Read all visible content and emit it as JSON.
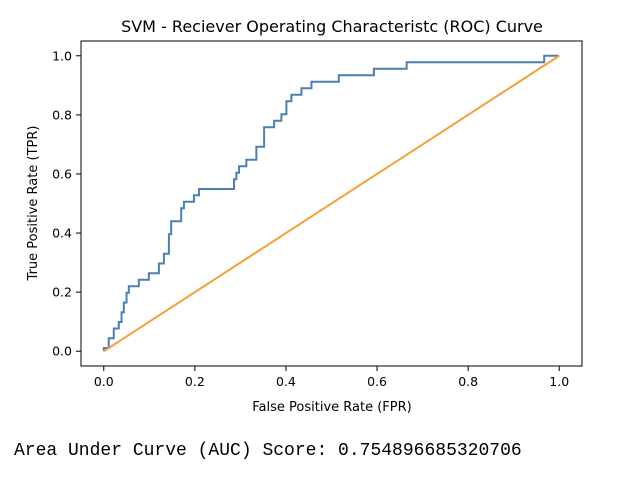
{
  "chart_data": {
    "type": "line",
    "title": "SVM - Reciever Operating Characteristc (ROC) Curve",
    "xlabel": "False Positive Rate (FPR)",
    "ylabel": "True Positive Rate (TPR)",
    "xlim": [
      -0.05,
      1.05
    ],
    "ylim": [
      -0.05,
      1.05
    ],
    "xticks": [
      "0.0",
      "0.2",
      "0.4",
      "0.6",
      "0.8",
      "1.0"
    ],
    "yticks": [
      "0.0",
      "0.2",
      "0.4",
      "0.6",
      "0.8",
      "1.0"
    ],
    "grid": false,
    "series": [
      {
        "color": "#4c7fb4",
        "points": [
          [
            0.0,
            0.0
          ],
          [
            0.0,
            0.011
          ],
          [
            0.011,
            0.011
          ],
          [
            0.011,
            0.044
          ],
          [
            0.022,
            0.044
          ],
          [
            0.022,
            0.077
          ],
          [
            0.033,
            0.077
          ],
          [
            0.033,
            0.099
          ],
          [
            0.039,
            0.099
          ],
          [
            0.039,
            0.132
          ],
          [
            0.044,
            0.132
          ],
          [
            0.044,
            0.165
          ],
          [
            0.05,
            0.165
          ],
          [
            0.05,
            0.198
          ],
          [
            0.055,
            0.198
          ],
          [
            0.055,
            0.22
          ],
          [
            0.077,
            0.22
          ],
          [
            0.077,
            0.242
          ],
          [
            0.099,
            0.242
          ],
          [
            0.099,
            0.264
          ],
          [
            0.121,
            0.264
          ],
          [
            0.121,
            0.297
          ],
          [
            0.132,
            0.297
          ],
          [
            0.132,
            0.33
          ],
          [
            0.143,
            0.33
          ],
          [
            0.143,
            0.396
          ],
          [
            0.148,
            0.396
          ],
          [
            0.148,
            0.44
          ],
          [
            0.17,
            0.44
          ],
          [
            0.17,
            0.484
          ],
          [
            0.176,
            0.484
          ],
          [
            0.176,
            0.506
          ],
          [
            0.198,
            0.506
          ],
          [
            0.198,
            0.528
          ],
          [
            0.209,
            0.528
          ],
          [
            0.209,
            0.549
          ],
          [
            0.286,
            0.549
          ],
          [
            0.286,
            0.582
          ],
          [
            0.291,
            0.582
          ],
          [
            0.291,
            0.604
          ],
          [
            0.297,
            0.604
          ],
          [
            0.297,
            0.626
          ],
          [
            0.313,
            0.626
          ],
          [
            0.313,
            0.648
          ],
          [
            0.335,
            0.648
          ],
          [
            0.335,
            0.692
          ],
          [
            0.352,
            0.692
          ],
          [
            0.352,
            0.758
          ],
          [
            0.374,
            0.758
          ],
          [
            0.374,
            0.78
          ],
          [
            0.39,
            0.78
          ],
          [
            0.39,
            0.802
          ],
          [
            0.401,
            0.802
          ],
          [
            0.401,
            0.846
          ],
          [
            0.412,
            0.846
          ],
          [
            0.412,
            0.868
          ],
          [
            0.434,
            0.868
          ],
          [
            0.434,
            0.89
          ],
          [
            0.456,
            0.89
          ],
          [
            0.456,
            0.912
          ],
          [
            0.516,
            0.912
          ],
          [
            0.516,
            0.934
          ],
          [
            0.593,
            0.934
          ],
          [
            0.593,
            0.956
          ],
          [
            0.665,
            0.956
          ],
          [
            0.665,
            0.978
          ],
          [
            0.967,
            0.978
          ],
          [
            0.967,
            1.0
          ],
          [
            1.0,
            1.0
          ]
        ]
      },
      {
        "color": "#f5a03a",
        "points": [
          [
            0.0,
            0.0
          ],
          [
            1.0,
            1.0
          ]
        ]
      }
    ]
  },
  "footer": {
    "auc_text": "Area Under Curve (AUC) Score: 0.754896685320706"
  }
}
